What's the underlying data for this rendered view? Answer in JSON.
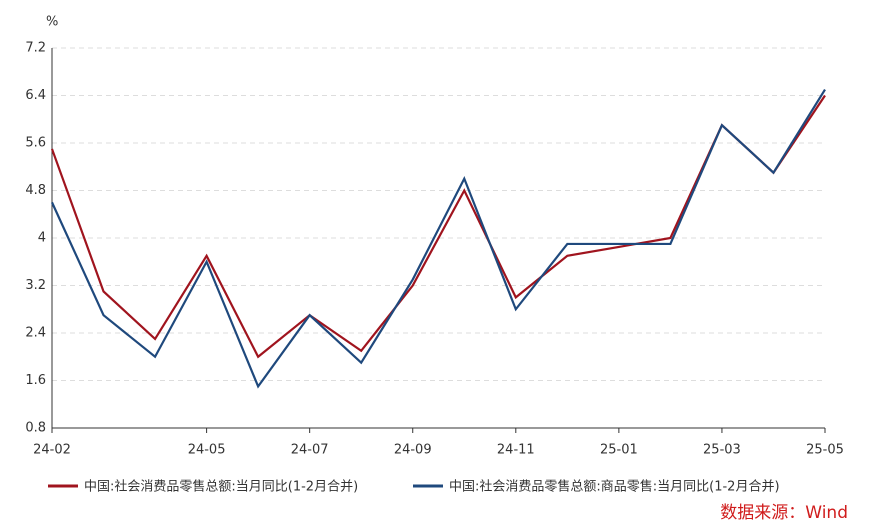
{
  "chart_data": {
    "type": "line",
    "y_unit": "%",
    "source": "数据来源：Wind",
    "categories": [
      "24-02",
      null,
      null,
      "24-05",
      null,
      "24-07",
      null,
      "24-09",
      null,
      "24-11",
      null,
      "25-01",
      null,
      "25-03",
      null,
      "25-05"
    ],
    "series": [
      {
        "name": "中国:社会消费品零售总额:当月同比(1-2月合并)",
        "color": "#a0141e",
        "values": [
          5.5,
          3.1,
          2.3,
          3.7,
          2.0,
          2.7,
          2.1,
          3.2,
          4.8,
          3.0,
          3.7,
          3.85,
          4.0,
          5.9,
          5.1,
          6.4
        ]
      },
      {
        "name": "中国:社会消费品零售总额:商品零售:当月同比(1-2月合并)",
        "color": "#1f497d",
        "values": [
          4.6,
          2.7,
          2.0,
          3.6,
          1.5,
          2.7,
          1.9,
          3.3,
          5.0,
          2.8,
          3.9,
          3.9,
          3.9,
          5.9,
          5.1,
          6.5
        ]
      }
    ],
    "ylim": [
      0.8,
      7.2
    ],
    "yticks": [
      0.8,
      1.6,
      2.4,
      3.2,
      4,
      4.8,
      5.6,
      6.4,
      7.2
    ],
    "grid": true
  }
}
